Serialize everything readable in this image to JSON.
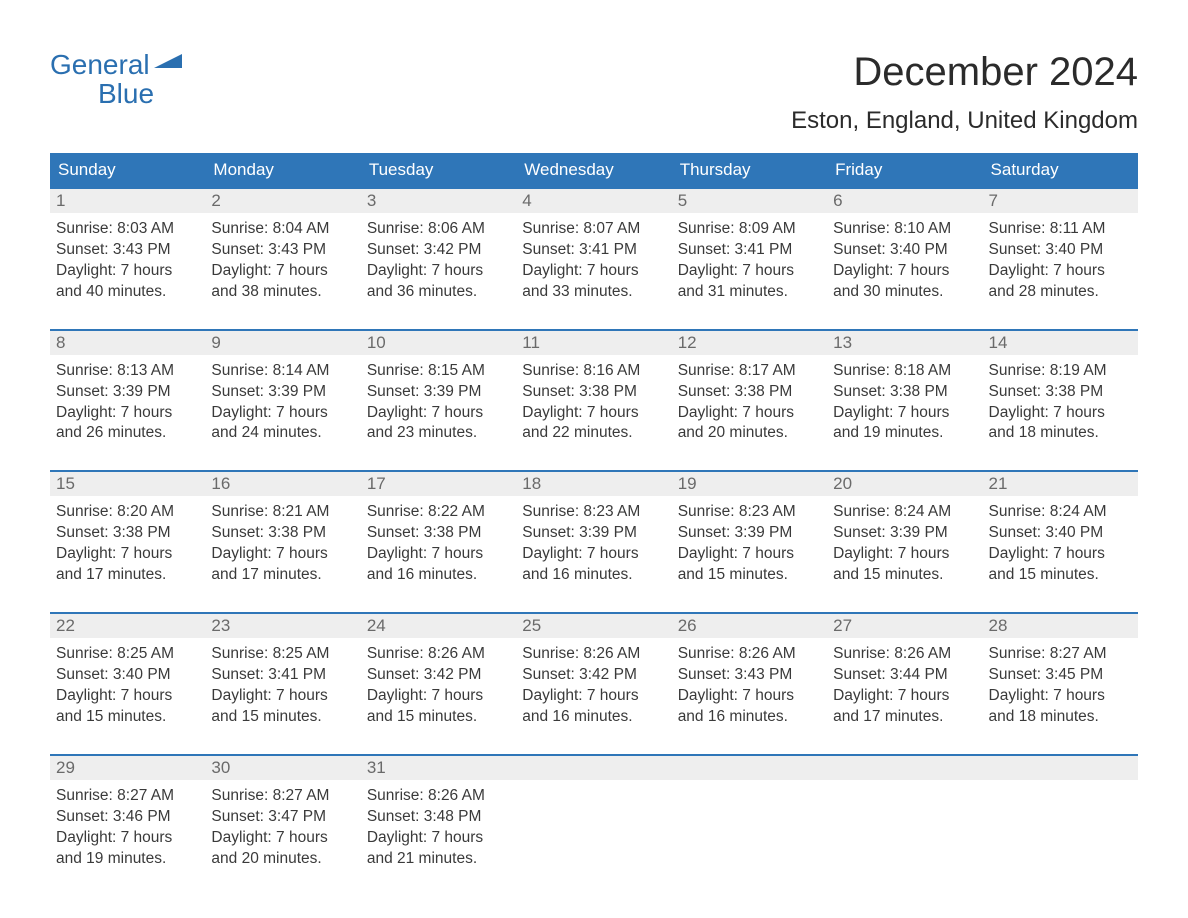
{
  "logo": {
    "line1": "General",
    "line2": "Blue",
    "color": "#2a6fb0"
  },
  "title": "December 2024",
  "subtitle": "Eston, England, United Kingdom",
  "colors": {
    "header_bg": "#2f76b8",
    "header_text": "#ffffff",
    "daynum_bg": "#eeeeee",
    "daynum_text": "#6a6a6a",
    "body_text": "#3a3a3a",
    "week_border": "#2f76b8",
    "page_bg": "#ffffff"
  },
  "typography": {
    "title_fontsize": 40,
    "subtitle_fontsize": 24,
    "header_fontsize": 17,
    "daynum_fontsize": 17,
    "body_fontsize": 15.5,
    "font_family": "Arial"
  },
  "day_names": [
    "Sunday",
    "Monday",
    "Tuesday",
    "Wednesday",
    "Thursday",
    "Friday",
    "Saturday"
  ],
  "labels": {
    "sunrise": "Sunrise:",
    "sunset": "Sunset:",
    "daylight_prefix": "Daylight:"
  },
  "weeks": [
    [
      {
        "n": "1",
        "sunrise": "8:03 AM",
        "sunset": "3:43 PM",
        "daylight": "7 hours and 40 minutes."
      },
      {
        "n": "2",
        "sunrise": "8:04 AM",
        "sunset": "3:43 PM",
        "daylight": "7 hours and 38 minutes."
      },
      {
        "n": "3",
        "sunrise": "8:06 AM",
        "sunset": "3:42 PM",
        "daylight": "7 hours and 36 minutes."
      },
      {
        "n": "4",
        "sunrise": "8:07 AM",
        "sunset": "3:41 PM",
        "daylight": "7 hours and 33 minutes."
      },
      {
        "n": "5",
        "sunrise": "8:09 AM",
        "sunset": "3:41 PM",
        "daylight": "7 hours and 31 minutes."
      },
      {
        "n": "6",
        "sunrise": "8:10 AM",
        "sunset": "3:40 PM",
        "daylight": "7 hours and 30 minutes."
      },
      {
        "n": "7",
        "sunrise": "8:11 AM",
        "sunset": "3:40 PM",
        "daylight": "7 hours and 28 minutes."
      }
    ],
    [
      {
        "n": "8",
        "sunrise": "8:13 AM",
        "sunset": "3:39 PM",
        "daylight": "7 hours and 26 minutes."
      },
      {
        "n": "9",
        "sunrise": "8:14 AM",
        "sunset": "3:39 PM",
        "daylight": "7 hours and 24 minutes."
      },
      {
        "n": "10",
        "sunrise": "8:15 AM",
        "sunset": "3:39 PM",
        "daylight": "7 hours and 23 minutes."
      },
      {
        "n": "11",
        "sunrise": "8:16 AM",
        "sunset": "3:38 PM",
        "daylight": "7 hours and 22 minutes."
      },
      {
        "n": "12",
        "sunrise": "8:17 AM",
        "sunset": "3:38 PM",
        "daylight": "7 hours and 20 minutes."
      },
      {
        "n": "13",
        "sunrise": "8:18 AM",
        "sunset": "3:38 PM",
        "daylight": "7 hours and 19 minutes."
      },
      {
        "n": "14",
        "sunrise": "8:19 AM",
        "sunset": "3:38 PM",
        "daylight": "7 hours and 18 minutes."
      }
    ],
    [
      {
        "n": "15",
        "sunrise": "8:20 AM",
        "sunset": "3:38 PM",
        "daylight": "7 hours and 17 minutes."
      },
      {
        "n": "16",
        "sunrise": "8:21 AM",
        "sunset": "3:38 PM",
        "daylight": "7 hours and 17 minutes."
      },
      {
        "n": "17",
        "sunrise": "8:22 AM",
        "sunset": "3:38 PM",
        "daylight": "7 hours and 16 minutes."
      },
      {
        "n": "18",
        "sunrise": "8:23 AM",
        "sunset": "3:39 PM",
        "daylight": "7 hours and 16 minutes."
      },
      {
        "n": "19",
        "sunrise": "8:23 AM",
        "sunset": "3:39 PM",
        "daylight": "7 hours and 15 minutes."
      },
      {
        "n": "20",
        "sunrise": "8:24 AM",
        "sunset": "3:39 PM",
        "daylight": "7 hours and 15 minutes."
      },
      {
        "n": "21",
        "sunrise": "8:24 AM",
        "sunset": "3:40 PM",
        "daylight": "7 hours and 15 minutes."
      }
    ],
    [
      {
        "n": "22",
        "sunrise": "8:25 AM",
        "sunset": "3:40 PM",
        "daylight": "7 hours and 15 minutes."
      },
      {
        "n": "23",
        "sunrise": "8:25 AM",
        "sunset": "3:41 PM",
        "daylight": "7 hours and 15 minutes."
      },
      {
        "n": "24",
        "sunrise": "8:26 AM",
        "sunset": "3:42 PM",
        "daylight": "7 hours and 15 minutes."
      },
      {
        "n": "25",
        "sunrise": "8:26 AM",
        "sunset": "3:42 PM",
        "daylight": "7 hours and 16 minutes."
      },
      {
        "n": "26",
        "sunrise": "8:26 AM",
        "sunset": "3:43 PM",
        "daylight": "7 hours and 16 minutes."
      },
      {
        "n": "27",
        "sunrise": "8:26 AM",
        "sunset": "3:44 PM",
        "daylight": "7 hours and 17 minutes."
      },
      {
        "n": "28",
        "sunrise": "8:27 AM",
        "sunset": "3:45 PM",
        "daylight": "7 hours and 18 minutes."
      }
    ],
    [
      {
        "n": "29",
        "sunrise": "8:27 AM",
        "sunset": "3:46 PM",
        "daylight": "7 hours and 19 minutes."
      },
      {
        "n": "30",
        "sunrise": "8:27 AM",
        "sunset": "3:47 PM",
        "daylight": "7 hours and 20 minutes."
      },
      {
        "n": "31",
        "sunrise": "8:26 AM",
        "sunset": "3:48 PM",
        "daylight": "7 hours and 21 minutes."
      },
      {
        "empty": true
      },
      {
        "empty": true
      },
      {
        "empty": true
      },
      {
        "empty": true
      }
    ]
  ]
}
